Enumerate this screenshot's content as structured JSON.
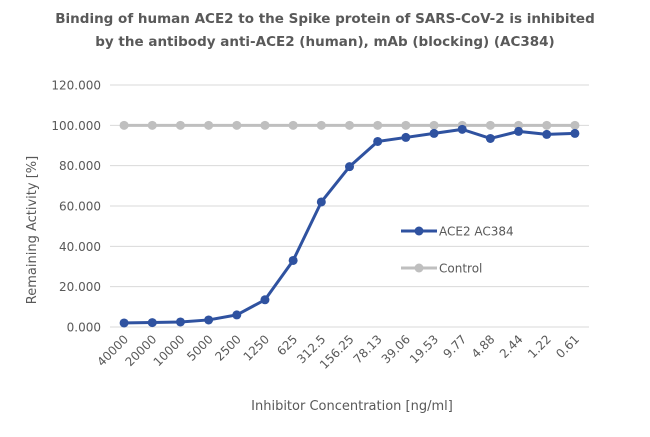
{
  "chart_data": {
    "type": "line",
    "title_lines": [
      "Binding of human ACE2 to the Spike protein of SARS-CoV-2 is inhibited",
      "by the antibody anti-ACE2 (human), mAb (blocking) (AC384)"
    ],
    "xlabel": "Inhibitor Concentration [ng/ml]",
    "ylabel": "Remaining Activity [%]",
    "ylim": [
      0,
      120
    ],
    "yticks": [
      0,
      20,
      40,
      60,
      80,
      100,
      120
    ],
    "ytick_labels": [
      "0.000",
      "20.000",
      "40.000",
      "60.000",
      "80.000",
      "100.000",
      "120.000"
    ],
    "categories": [
      "40000",
      "20000",
      "10000",
      "5000",
      "2500",
      "1250",
      "625",
      "312.5",
      "156.25",
      "78.13",
      "39.06",
      "19.53",
      "9.77",
      "4.88",
      "2.44",
      "1.22",
      "0.61"
    ],
    "grid": "horizontal",
    "legend_position": "center-right",
    "series": [
      {
        "name": "ACE2 AC384",
        "color": "#2F52A0",
        "values": [
          2,
          2.2,
          2.5,
          3.5,
          6,
          13.5,
          33,
          62,
          79.5,
          92,
          94,
          96,
          98,
          93.5,
          97,
          95.5,
          96
        ]
      },
      {
        "name": "Control",
        "color": "#BFBFBF",
        "values": [
          100,
          100,
          100,
          100,
          100,
          100,
          100,
          100,
          100,
          100,
          100,
          100,
          100,
          100,
          100,
          100,
          100
        ]
      }
    ]
  }
}
